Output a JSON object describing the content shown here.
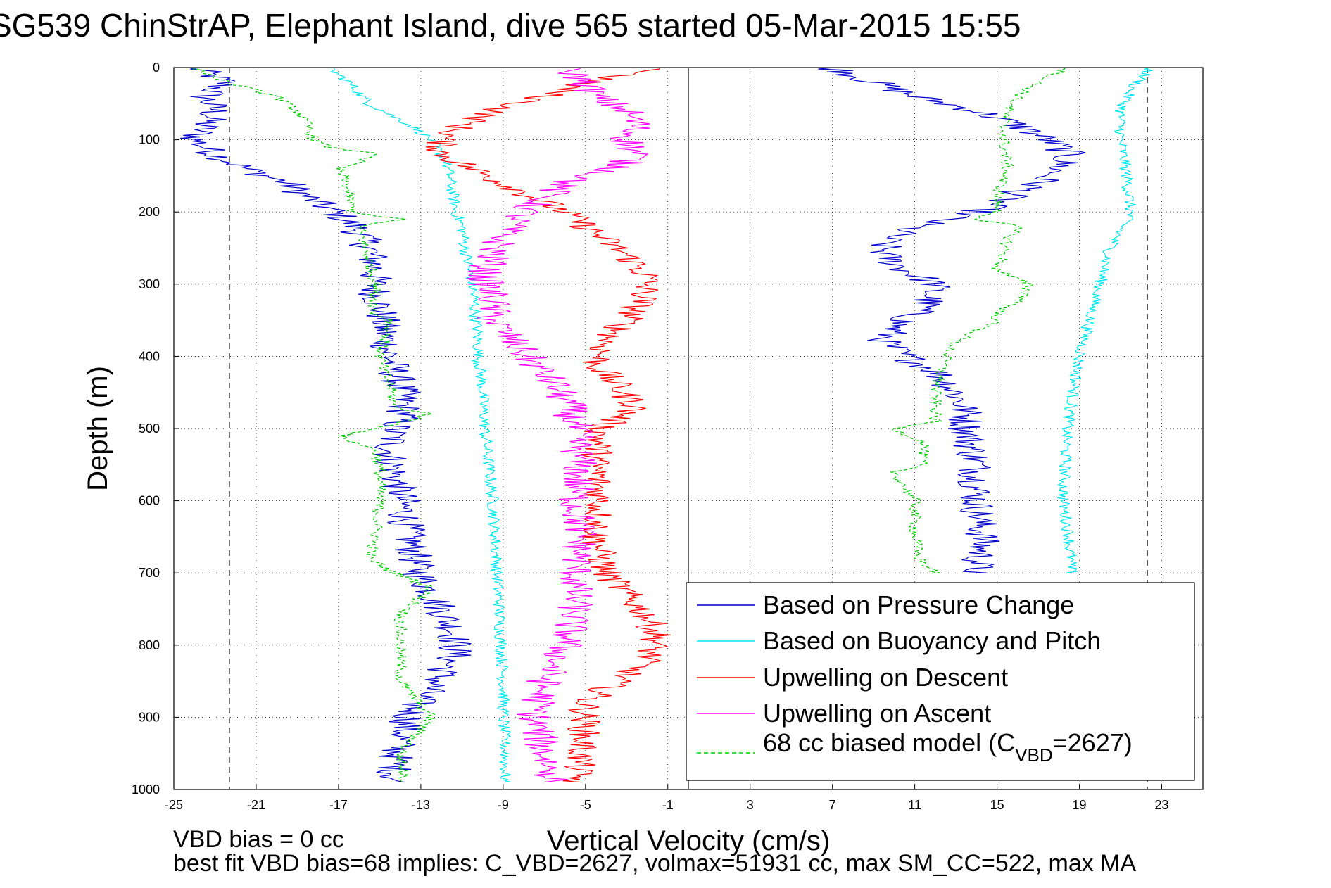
{
  "chart_data": {
    "type": "line",
    "title": "SG539 ChinStrAP, Elephant Island, dive 565 started 05-Mar-2015 15:55",
    "xlabel": "Vertical Velocity (cm/s)",
    "ylabel": "Depth (m)",
    "xlim": [
      -25,
      25
    ],
    "ylim": [
      0,
      1000
    ],
    "y_reversed": true,
    "grid": true,
    "xticks": [
      -25,
      -21,
      -17,
      -13,
      -9,
      -5,
      -1,
      3,
      7,
      11,
      15,
      19,
      23
    ],
    "yticks": [
      0,
      100,
      200,
      300,
      400,
      500,
      600,
      700,
      800,
      900,
      1000
    ],
    "reference_lines": [
      {
        "x": -22.3,
        "style": "dashed",
        "color": "#000000"
      },
      {
        "x": 22.3,
        "style": "dashed",
        "color": "#000000"
      },
      {
        "x": 0,
        "style": "solid",
        "color": "#000000"
      }
    ],
    "legend_position": "bottom-right",
    "series": [
      {
        "name": "Based on Pressure Change",
        "color": "#0000cc",
        "noise": 0.9,
        "descent": {
          "depth": [
            0,
            20,
            40,
            60,
            80,
            100,
            120,
            140,
            160,
            180,
            200,
            220,
            250,
            280,
            300,
            330,
            360,
            390,
            420,
            450,
            480,
            500,
            530,
            560,
            600,
            650,
            700,
            740,
            780,
            810,
            850,
            880,
            900,
            950,
            990
          ],
          "value": [
            -24,
            -22.5,
            -23.5,
            -23,
            -23.5,
            -24,
            -23,
            -21.5,
            -19.5,
            -18.5,
            -17.2,
            -16.2,
            -15.5,
            -15.2,
            -15.3,
            -15.0,
            -14.8,
            -14.6,
            -14.3,
            -13.9,
            -13.8,
            -14.3,
            -14.5,
            -14.3,
            -13.9,
            -13.6,
            -13.1,
            -12.2,
            -11.4,
            -11.3,
            -12.2,
            -13.2,
            -13.6,
            -14.2,
            -14.3
          ]
        },
        "ascent": {
          "depth": [
            0,
            20,
            40,
            60,
            80,
            100,
            120,
            140,
            160,
            180,
            200,
            220,
            240,
            260,
            280,
            300,
            330,
            360,
            380,
            400,
            420,
            450,
            480,
            500,
            550,
            600,
            650,
            700
          ],
          "value": [
            7,
            9,
            11,
            14,
            16,
            17.5,
            18.5,
            18,
            17,
            15.5,
            14,
            11,
            9.5,
            9.5,
            10.5,
            12,
            11.5,
            10,
            9.5,
            10.5,
            12,
            13,
            13.5,
            13.5,
            14,
            14,
            14.3,
            14
          ]
        }
      },
      {
        "name": "Based on Buoyancy and Pitch",
        "color": "#00e5ee",
        "noise": 0.3,
        "descent": {
          "depth": [
            0,
            20,
            50,
            80,
            100,
            130,
            150,
            200,
            220,
            260,
            300,
            350,
            400,
            450,
            500,
            550,
            600,
            650,
            700,
            750,
            800,
            850,
            900,
            950,
            990
          ],
          "value": [
            -17.5,
            -16.5,
            -15.5,
            -13.5,
            -12.5,
            -11.8,
            -11.6,
            -11.3,
            -11.0,
            -10.8,
            -10.5,
            -10.3,
            -10.2,
            -10.0,
            -9.9,
            -9.7,
            -9.5,
            -9.4,
            -9.3,
            -9.2,
            -9.1,
            -9.0,
            -9.0,
            -8.9,
            -8.9
          ]
        },
        "ascent": {
          "depth": [
            0,
            30,
            60,
            100,
            150,
            200,
            250,
            300,
            350,
            400,
            450,
            500,
            550,
            600,
            650,
            700
          ],
          "value": [
            22.5,
            21.5,
            21.0,
            21.0,
            21.3,
            21.5,
            20.5,
            20.0,
            19.5,
            19.0,
            18.7,
            18.4,
            18.3,
            18.2,
            18.5,
            18.6
          ]
        }
      },
      {
        "name": "Upwelling on Descent",
        "color": "#ff0000",
        "noise": 0.8,
        "depth": [
          0,
          20,
          40,
          60,
          80,
          100,
          120,
          140,
          160,
          180,
          200,
          230,
          260,
          290,
          320,
          350,
          380,
          410,
          440,
          470,
          500,
          550,
          600,
          650,
          700,
          730,
          760,
          790,
          820,
          850,
          880,
          900,
          950,
          990
        ],
        "value": [
          -1.0,
          -5,
          -7,
          -9.5,
          -11,
          -12,
          -12,
          -10.5,
          -9,
          -7.5,
          -6,
          -4.5,
          -3,
          -2,
          -2.2,
          -3,
          -4,
          -4.5,
          -3.5,
          -2.5,
          -4.3,
          -4.5,
          -4.3,
          -4.5,
          -4.0,
          -3,
          -2,
          -1.5,
          -2,
          -3.5,
          -5,
          -5,
          -5.2,
          -5.5
        ]
      },
      {
        "name": "Upwelling on Ascent",
        "color": "#ff00ff",
        "noise": 0.9,
        "depth": [
          0,
          20,
          40,
          60,
          80,
          100,
          120,
          140,
          160,
          180,
          200,
          230,
          260,
          290,
          320,
          350,
          380,
          410,
          440,
          470,
          500,
          550,
          600,
          650,
          700,
          750,
          800,
          850,
          900,
          950,
          990
        ],
        "value": [
          -6,
          -5,
          -4.5,
          -3,
          -2.5,
          -3,
          -2.5,
          -3.5,
          -6,
          -7,
          -8,
          -9,
          -9.5,
          -10,
          -9.5,
          -9.5,
          -8.5,
          -7.5,
          -6.5,
          -5.8,
          -5.5,
          -5.3,
          -5.5,
          -5.2,
          -5.5,
          -5.5,
          -6.0,
          -7.0,
          -7.5,
          -7.0,
          -6.5
        ]
      },
      {
        "name": "68 cc biased model (C<sub>VBD</sub>=2627)",
        "legend_main": "68 cc biased model (C",
        "legend_sub": "VBD",
        "legend_tail": "=2627)",
        "color": "#00cc00",
        "dashed": true,
        "noise": 0.3,
        "descent": {
          "depth": [
            0,
            20,
            40,
            60,
            80,
            100,
            110,
            120,
            140,
            160,
            180,
            200,
            210,
            220,
            240,
            260,
            280,
            300,
            340,
            350,
            400,
            420,
            440,
            470,
            480,
            500,
            510,
            530,
            560,
            600,
            650,
            680,
            700,
            720,
            760,
            800,
            850,
            900,
            950,
            990
          ],
          "value": [
            -24,
            -22.5,
            -20,
            -19,
            -18.5,
            -18.2,
            -17.5,
            -15.0,
            -17.0,
            -16.6,
            -16.5,
            -16.3,
            -14.0,
            -16.0,
            -15.8,
            -15.6,
            -15.4,
            -15.2,
            -15.3,
            -14.5,
            -15.0,
            -14.8,
            -14.5,
            -14.3,
            -12.5,
            -15.0,
            -17.0,
            -15.2,
            -15.0,
            -15.0,
            -15.2,
            -15.5,
            -14.3,
            -12.5,
            -14.0,
            -14.0,
            -14.0,
            -12.5,
            -14.0,
            -13.8
          ]
        },
        "ascent": {
          "depth": [
            0,
            20,
            40,
            60,
            80,
            100,
            140,
            160,
            180,
            200,
            210,
            220,
            240,
            260,
            280,
            300,
            320,
            340,
            350,
            380,
            400,
            420,
            450,
            490,
            500,
            520,
            550,
            560,
            600,
            650,
            680,
            700
          ],
          "value": [
            18.5,
            17.0,
            16.0,
            15.5,
            15.3,
            15.3,
            15.5,
            15.2,
            15.0,
            15.0,
            14.0,
            16.0,
            15.5,
            15.3,
            15.0,
            16.5,
            16.3,
            15.0,
            15.0,
            13.0,
            12.5,
            12.3,
            12.0,
            12.0,
            10.0,
            11.5,
            11.3,
            10.0,
            11.0,
            11.0,
            11.2,
            12.0
          ]
        }
      }
    ]
  },
  "annotations": {
    "line1": "VBD bias = 0 cc",
    "line2": "best fit VBD bias=68 implies: C_VBD=2627, volmax=51931 cc, max SM_CC=522, max MA"
  }
}
